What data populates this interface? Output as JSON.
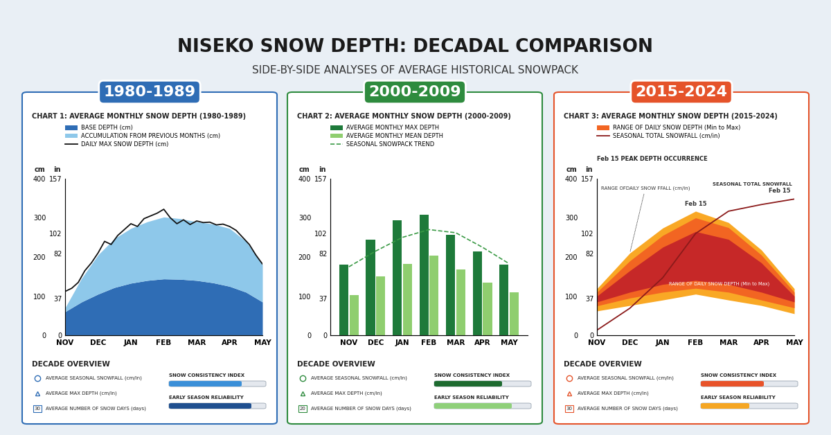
{
  "title": "NISEKO SNOW DEPTH: DECADAL COMPARISON",
  "subtitle": "SIDE-BY-SIDE ANALYSES OF AVERAGE HISTORICAL SNOWPACK",
  "chart_data": [
    {
      "type": "area",
      "header": "1980-1989",
      "color": "#2f6db5",
      "title": "CHART 1: AVERAGE MONTHLY SNOW DEPTH (1980-1989)",
      "y_label": "cm",
      "y2_label": "in",
      "x": [
        0,
        0.5,
        1,
        1.5,
        2,
        2.5,
        3,
        3.5,
        4,
        4.5,
        5,
        5.5,
        6
      ],
      "xlim": [
        0,
        6
      ],
      "xticks": [
        {
          "value": 0,
          "label": "NOV"
        },
        {
          "value": 1,
          "label": "DEC"
        },
        {
          "value": 2,
          "label": "JAN"
        },
        {
          "value": 3,
          "label": "FEB"
        },
        {
          "value": 4,
          "label": "MAR"
        },
        {
          "value": 5,
          "label": "APR"
        },
        {
          "value": 6,
          "label": "MAY"
        }
      ],
      "ylim": [
        0,
        400
      ],
      "yticks": [
        0,
        100,
        200,
        300,
        400
      ],
      "y2lim": [
        0,
        157
      ],
      "y2ticks": [
        0,
        37,
        82,
        102,
        157
      ],
      "stacked": true,
      "series": [
        {
          "name": "BASE DEPTH (cm)",
          "type": "area",
          "color": "#2f6db5",
          "values": [
            60,
            85,
            105,
            122,
            133,
            140,
            144,
            143,
            140,
            134,
            125,
            110,
            85
          ]
        },
        {
          "name": "ACCUMULATION FROM PREVIOUS MONTHS (cm)",
          "type": "area",
          "color": "#8ec8ea",
          "values": [
            10,
            60,
            100,
            125,
            140,
            150,
            158,
            155,
            150,
            150,
            148,
            130,
            95
          ]
        },
        {
          "name": "DAILY MAX SNOW DEPTH (cm)",
          "type": "line",
          "color": "#111111",
          "line_style": "solid",
          "x": [
            0,
            0.2,
            0.4,
            0.6,
            0.8,
            1,
            1.2,
            1.4,
            1.6,
            1.8,
            2,
            2.2,
            2.4,
            2.6,
            2.8,
            3,
            3.2,
            3.4,
            3.6,
            3.8,
            4,
            4.2,
            4.4,
            4.6,
            4.8,
            5,
            5.2,
            5.4,
            5.6,
            5.8,
            6
          ],
          "values": [
            112,
            120,
            135,
            165,
            185,
            210,
            240,
            232,
            255,
            270,
            285,
            278,
            298,
            305,
            312,
            322,
            300,
            285,
            295,
            283,
            292,
            288,
            289,
            282,
            284,
            278,
            268,
            250,
            232,
            205,
            182
          ]
        }
      ],
      "overview": {
        "title": "DECADE OVERVIEW",
        "items": [
          "AVERAGE SEASONAL SNOWFALL (cm/in)",
          "AVERAGE MAX DEPTH (cm/in)",
          "AVERAGE NUMBER OF SNOW DAYS (days)"
        ],
        "calendar": 30,
        "gauge_range": [
          0,
          100
        ],
        "gauges": [
          {
            "label": "SNOW CONSISTENCY INDEX",
            "level": 75,
            "color": "#3a8fd8"
          },
          {
            "label": "EARLY SEASON RELIABILITY",
            "level": 85,
            "color": "#1f4f8f"
          }
        ]
      }
    },
    {
      "type": "bar",
      "header": "2000-2009",
      "color": "#2e8b3e",
      "title": "CHART 2: AVERAGE MONTHLY SNOW DEPTH (2000-2009)",
      "y_label": "cm",
      "y2_label": "in",
      "categories": [
        "NOV",
        "DEC",
        "JAN",
        "FEB",
        "MAR",
        "APR",
        "MAY"
      ],
      "ylim": [
        0,
        400
      ],
      "yticks": [
        0,
        100,
        200,
        300,
        400
      ],
      "y2lim": [
        0,
        157
      ],
      "y2ticks": [
        0,
        37,
        82,
        102,
        157
      ],
      "series": [
        {
          "name": "AVERAGE MONTHLY MAX DEPTH",
          "type": "bar",
          "color": "#1e7a3a",
          "values": [
            180,
            245,
            294,
            308,
            257,
            215,
            180
          ]
        },
        {
          "name": "AVERAGE MONTHLY MEAN DEPTH",
          "type": "bar",
          "color": "#8fce6f",
          "values": [
            103,
            150,
            182,
            204,
            168,
            134,
            109
          ]
        },
        {
          "name": "SEASONAL SNOWPACK TREND",
          "type": "line",
          "color": "#3a9a45",
          "line_style": "dashed",
          "values": [
            175,
            215,
            250,
            270,
            262,
            225,
            183
          ]
        }
      ],
      "overview": {
        "title": "DECADE OVERVIEW",
        "items": [
          "AVERAGE SEASONAL SNOWFALL (cm/in)",
          "AVERAGE MAX DEPTH (cm/in)",
          "AVERAGE NUMBER OF SNOW DAYS (days)"
        ],
        "calendar": 20,
        "gauge_range": [
          0,
          100
        ],
        "gauges": [
          {
            "label": "SNOW CONSISTENCY INDEX",
            "level": 70,
            "color": "#1e6b30"
          },
          {
            "label": "EARLY SEASON RELIABILITY",
            "level": 80,
            "color": "#8fd07a"
          }
        ]
      }
    },
    {
      "type": "area",
      "header": "2015-2024",
      "color": "#e5532a",
      "title": "CHART 3: AVERAGE MONTHLY SNOW DEPTH (2015-2024)",
      "y_label": "cm",
      "y2_label": "in",
      "x": [
        0,
        1,
        2,
        3,
        4,
        5,
        6
      ],
      "xlim": [
        0,
        6
      ],
      "xticks": [
        {
          "value": 0,
          "label": "NOV"
        },
        {
          "value": 1,
          "label": "DEC"
        },
        {
          "value": 2,
          "label": "JAN"
        },
        {
          "value": 3,
          "label": "FEB"
        },
        {
          "value": 4,
          "label": "MAR"
        },
        {
          "value": 5,
          "label": "APR"
        },
        {
          "value": 6,
          "label": "MAY"
        }
      ],
      "ylim": [
        0,
        400
      ],
      "yticks": [
        0,
        100,
        200,
        300,
        400
      ],
      "y2lim": [
        0,
        157
      ],
      "y2ticks": [
        0,
        37,
        82,
        102,
        157
      ],
      "series": [
        {
          "name": "RANGE OF DAILY SNOW DEPTH (Min to Max)",
          "type": "range",
          "colors": [
            "#f9a825",
            "#f26522",
            "#c62828"
          ],
          "bands": [
            {
              "low": [
                62,
                76,
                90,
                105,
                90,
                76,
                55
              ],
              "high": [
                119,
                210,
                274,
                317,
                288,
                218,
                119
              ]
            },
            {
              "low": [
                75,
                95,
                110,
                120,
                110,
                90,
                70
              ],
              "high": [
                110,
                190,
                255,
                300,
                275,
                205,
                110
              ]
            },
            {
              "low": [
                85,
                110,
                130,
                140,
                130,
                110,
                85
              ],
              "high": [
                100,
                165,
                225,
                265,
                245,
                185,
                100
              ]
            }
          ]
        },
        {
          "name": "SEASONAL TOTAL SNOWFALL (cm/in)",
          "type": "line",
          "color": "#8b1a1a",
          "line_style": "solid",
          "values": [
            13,
            69,
            147,
            260,
            317,
            334,
            348
          ]
        }
      ],
      "annotations": [
        "Feb 15 PEAK DEPTH OCCURRENCE",
        "Feb 15",
        "Feb 15",
        "RANGE OFDAILY SNOW FFALL (cm/in)",
        "SEASONAL TOTAL SNOWFALL",
        "RANGE OF DAILY SNOW DEPTH (Min to Max)"
      ],
      "overview": {
        "title": "DECADE OVERVIEW",
        "items": [
          "AVERAGE SEASONAL SNOWFALL (cm/in)",
          "AVERAGE MAX DEPTH (cm/in)",
          "AVERAGE NUMBER OF SNOW DAYS (days)"
        ],
        "calendar": 30,
        "gauge_range": [
          0,
          100
        ],
        "gauges": [
          {
            "label": "SNOW CONSISTENCY INDEX",
            "level": 65,
            "color": "#e8532a"
          },
          {
            "label": "EARLY SEASON RELIABILITY",
            "level": 50,
            "color": "#f5a623"
          }
        ]
      }
    }
  ]
}
